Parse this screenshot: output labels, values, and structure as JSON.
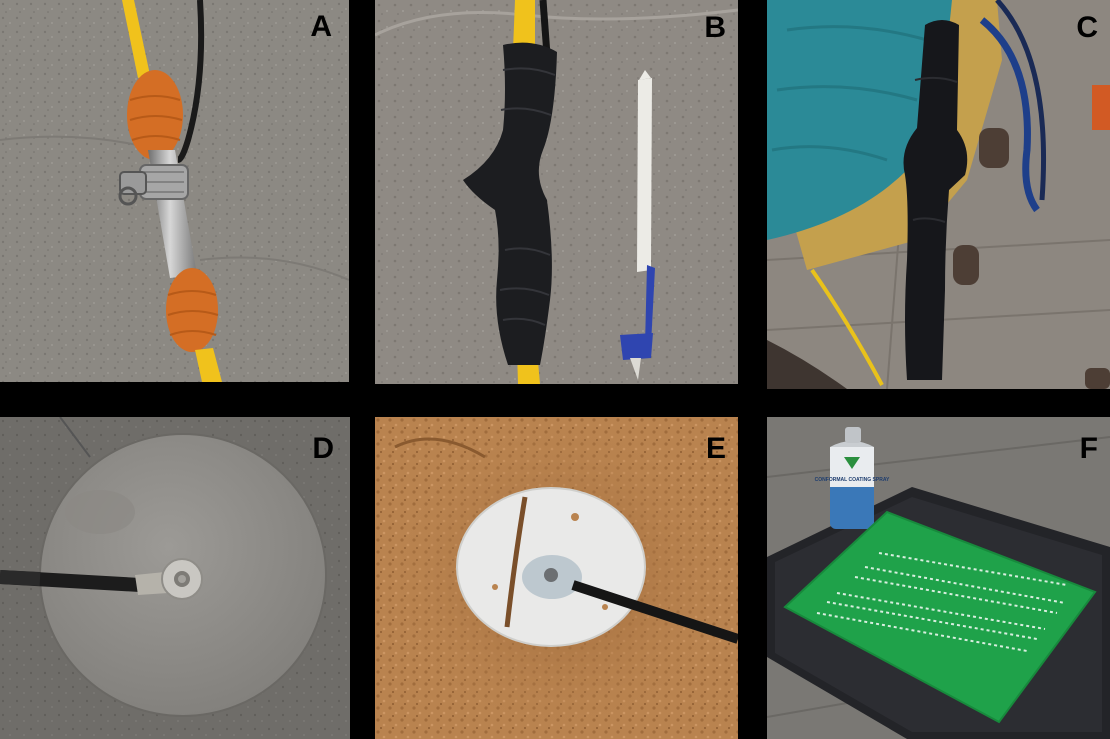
{
  "panels": [
    {
      "label": "A",
      "subject": "stainless steel hose clamp joining cable with orange tape"
    },
    {
      "label": "B",
      "subject": "cable joint wrapped in black rubber tape next to pen"
    },
    {
      "label": "C",
      "subject": "black insulated sensor cable held by person"
    },
    {
      "label": "D",
      "subject": "circular metal plate electrode with bolted cable"
    },
    {
      "label": "E",
      "subject": "electrode plate placed in soil pit"
    },
    {
      "label": "F",
      "subject": "green circuit board with conformal coating spray can"
    }
  ],
  "spray_can_text": "CONFORMAL COATING SPRAY",
  "colors": {
    "background": "#000000",
    "stone": "#8a8680",
    "cable_yellow": "#f2c21a",
    "orange_tape": "#d9752a",
    "black_tape": "#1c1d20",
    "pcb_green": "#1fa24a",
    "soil": "#b9834f"
  }
}
